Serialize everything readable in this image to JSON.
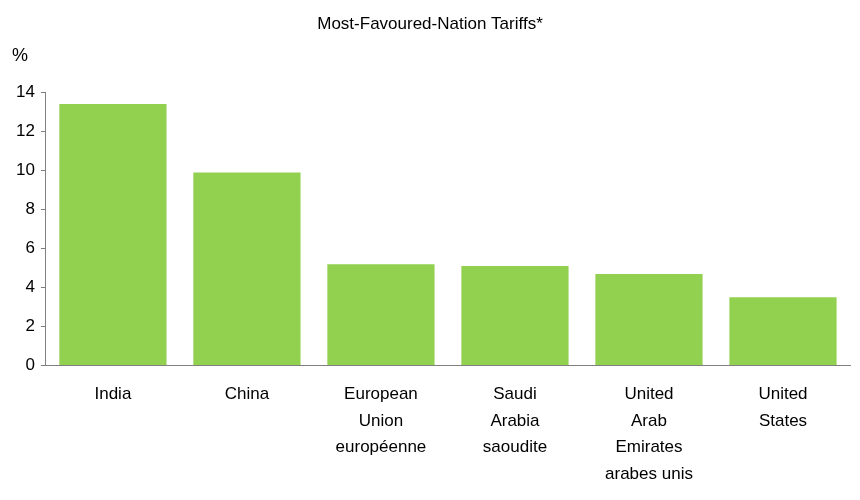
{
  "chart_data": {
    "type": "bar",
    "title": "Most-Favoured-Nation Tariffs*",
    "y_label": "%",
    "categories": [
      "India",
      "China",
      [
        "European",
        "Union",
        "européenne"
      ],
      [
        "Saudi",
        "Arabia",
        "saoudite"
      ],
      [
        "United",
        "Arab",
        "Emirates",
        "arabes unis"
      ],
      [
        "United",
        "States"
      ]
    ],
    "values": [
      13.4,
      9.9,
      5.2,
      5.1,
      4.7,
      3.5
    ],
    "color": "#92d050",
    "ylim": [
      0,
      14
    ],
    "yticks": [
      0,
      2,
      4,
      6,
      8,
      10,
      12,
      14
    ],
    "grid": false
  }
}
